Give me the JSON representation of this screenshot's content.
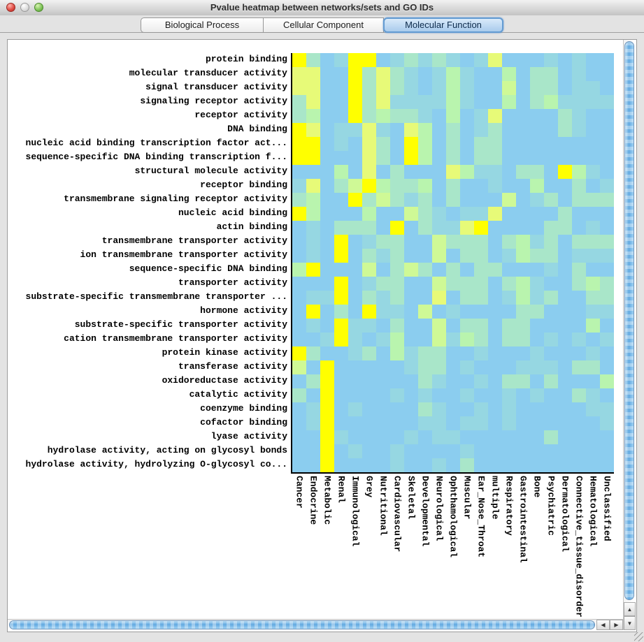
{
  "window": {
    "title": "Pvalue heatmap between networks/sets and GO IDs"
  },
  "tabs": [
    {
      "label": "Biological Process",
      "selected": false
    },
    {
      "label": "Cellular Component",
      "selected": false
    },
    {
      "label": "Molecular Function",
      "selected": true
    }
  ],
  "scrollbars": {
    "up_arrow": "▲",
    "down_arrow": "▼",
    "left_arrow": "◀",
    "right_arrow": "▶"
  },
  "chart_data": {
    "type": "heatmap",
    "title": "Pvalue heatmap between networks/sets and GO IDs",
    "rows": [
      "protein binding",
      "molecular transducer activity",
      "signal transducer activity",
      "signaling receptor activity",
      "receptor activity",
      "DNA binding",
      "nucleic acid binding transcription factor act...",
      "sequence-specific DNA binding transcription f...",
      "structural molecule activity",
      "receptor binding",
      "transmembrane signaling receptor activity",
      "nucleic acid binding",
      "actin binding",
      "transmembrane transporter activity",
      "ion transmembrane transporter activity",
      "sequence-specific DNA binding",
      "transporter activity",
      "substrate-specific transmembrane transporter ...",
      "hormone activity",
      "substrate-specific transporter activity",
      "cation transmembrane transporter activity",
      "protein kinase activity",
      "transferase activity",
      "oxidoreductase activity",
      "catalytic activity",
      "coenzyme binding",
      "cofactor binding",
      "lyase activity",
      "hydrolase activity, acting on glycosyl bonds",
      "hydrolase activity, hydrolyzing O-glycosyl co..."
    ],
    "columns": [
      "Cancer",
      "Endocrine",
      "Metabolic",
      "Renal",
      "Immunological",
      "Grey",
      "Nutritional",
      "Cardiovascular",
      "Skeletal",
      "Developmental",
      "Neurological",
      "Ophthamological",
      "Muscular",
      "Ear_Nose_Throat",
      "multiple",
      "Respiratory",
      "Gastrointestinal",
      "Bone",
      "Psychiatric",
      "Dermatological",
      "Connective_tissue_disorder",
      "Hematological",
      "Unclassified"
    ],
    "legend": "cell color encodes p-value significance: 0 = least significant (blue) .. 6 = most significant (yellow)",
    "levels": [
      "#8BCDEF",
      "#96D7E2",
      "#A9E6C9",
      "#B9F4AE",
      "#CFF996",
      "#E7FA78",
      "#FFFF00"
    ],
    "cells": [
      "62016601212101500010100",
      "55006252101310030220100",
      "55006252101310040220110",
      "25006251111310030231111",
      "23006232210301500002100",
      "65011510530201200002100",
      "66010520630202200000000",
      "66000520630202200000000",
      "00030502000531102206310",
      "15024632230200100300201",
      "23006242120200040120222",
      "63000300421011500002000",
      "01022206021156000022010",
      "01060122004222023120222",
      "01060212004022013220111",
      "36000402420202200010200",
      "00060122004222023100232",
      "01160212005022013120022",
      "06020611040100002200011",
      "01061102004022022000030",
      "00161013004132022010101",
      "62001203122001000100010",
      "40600000122010001110220",
      "02600000021001022020003",
      "20600001010010010100210",
      "01601000021001010000011",
      "01600000011011010000001",
      "00610000101100000020000",
      "00601001000010000000000",
      "00600001001020000000000"
    ]
  }
}
